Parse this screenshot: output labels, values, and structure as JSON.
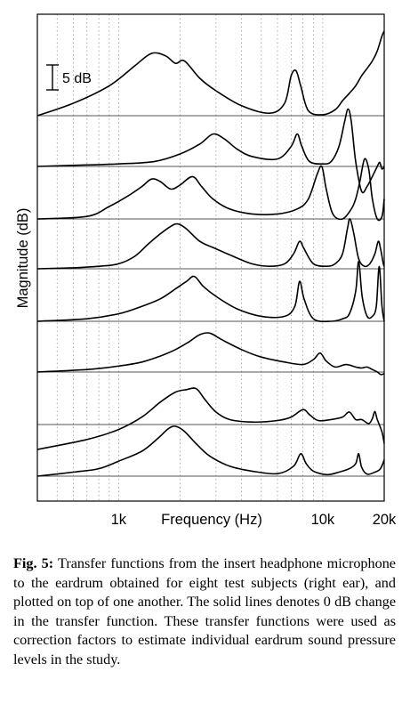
{
  "chart_data": {
    "type": "line",
    "xlabel": "Frequency (Hz)",
    "ylabel": "Magnitude (dB)",
    "x_scale": "log",
    "xlim": [
      400,
      20000
    ],
    "x_tick_labels": [
      "1k",
      "10k",
      "20k"
    ],
    "x_ticks": [
      1000,
      10000,
      20000
    ],
    "scale_bar_label": "5 dB",
    "scale_bar_db": 5,
    "grid": "dotted vertical",
    "series": [
      {
        "name": "",
        "points": [
          [
            400,
            0
          ],
          [
            600,
            2.5
          ],
          [
            900,
            6
          ],
          [
            1200,
            10
          ],
          [
            1450,
            12.5
          ],
          [
            1700,
            12
          ],
          [
            1900,
            10.5
          ],
          [
            2100,
            11
          ],
          [
            2500,
            7.5
          ],
          [
            3000,
            5
          ],
          [
            4000,
            2
          ],
          [
            5500,
            0.5
          ],
          [
            6500,
            2.5
          ],
          [
            7000,
            8
          ],
          [
            7400,
            9
          ],
          [
            7800,
            6
          ],
          [
            8500,
            1
          ],
          [
            10000,
            0.2
          ],
          [
            11500,
            1.2
          ],
          [
            12500,
            3
          ],
          [
            13500,
            4.5
          ],
          [
            14500,
            6
          ],
          [
            15500,
            8
          ],
          [
            16500,
            9.5
          ],
          [
            17500,
            11
          ],
          [
            18500,
            13
          ],
          [
            19500,
            16
          ],
          [
            20000,
            17
          ]
        ]
      },
      {
        "name": "",
        "points": [
          [
            400,
            0
          ],
          [
            700,
            0.3
          ],
          [
            1000,
            0.5
          ],
          [
            1500,
            1
          ],
          [
            2000,
            2.5
          ],
          [
            2500,
            4.5
          ],
          [
            2900,
            6.5
          ],
          [
            3300,
            5.5
          ],
          [
            3800,
            3.5
          ],
          [
            4500,
            2
          ],
          [
            6000,
            1.5
          ],
          [
            7000,
            4
          ],
          [
            7500,
            6.5
          ],
          [
            7900,
            4
          ],
          [
            8600,
            1
          ],
          [
            10000,
            0.5
          ],
          [
            11000,
            1
          ],
          [
            12000,
            4
          ],
          [
            12800,
            9
          ],
          [
            13300,
            11.5
          ],
          [
            13800,
            9
          ],
          [
            14500,
            1
          ],
          [
            15500,
            -5
          ],
          [
            16500,
            -4
          ],
          [
            17500,
            -2
          ],
          [
            18500,
            0
          ],
          [
            19000,
            0.8
          ],
          [
            19500,
            -0.5
          ],
          [
            20000,
            0
          ]
        ]
      },
      {
        "name": "",
        "points": [
          [
            400,
            0
          ],
          [
            700,
            0.5
          ],
          [
            900,
            2.5
          ],
          [
            1100,
            4.5
          ],
          [
            1300,
            6.5
          ],
          [
            1450,
            8
          ],
          [
            1600,
            7.5
          ],
          [
            1800,
            6
          ],
          [
            2000,
            6.8
          ],
          [
            2300,
            8.5
          ],
          [
            2550,
            6.5
          ],
          [
            2900,
            4
          ],
          [
            3500,
            2
          ],
          [
            4500,
            1
          ],
          [
            6000,
            1
          ],
          [
            7500,
            2
          ],
          [
            8500,
            4
          ],
          [
            9400,
            9
          ],
          [
            9900,
            10.5
          ],
          [
            10400,
            6
          ],
          [
            11200,
            1
          ],
          [
            12500,
            0
          ],
          [
            13800,
            2
          ],
          [
            14500,
            4
          ],
          [
            15200,
            7.5
          ],
          [
            16000,
            12
          ],
          [
            16800,
            10
          ],
          [
            17500,
            4
          ],
          [
            18500,
            0
          ],
          [
            19500,
            0.5
          ],
          [
            20000,
            4
          ]
        ]
      },
      {
        "name": "",
        "points": [
          [
            400,
            0
          ],
          [
            600,
            0.2
          ],
          [
            800,
            0.5
          ],
          [
            1000,
            1
          ],
          [
            1200,
            2.5
          ],
          [
            1400,
            5
          ],
          [
            1600,
            7
          ],
          [
            1800,
            8.5
          ],
          [
            1950,
            9
          ],
          [
            2150,
            8
          ],
          [
            2500,
            5.5
          ],
          [
            3000,
            4
          ],
          [
            3500,
            2.8
          ],
          [
            4500,
            1
          ],
          [
            5500,
            0.5
          ],
          [
            6500,
            1
          ],
          [
            7200,
            3
          ],
          [
            7700,
            5.5
          ],
          [
            8100,
            4
          ],
          [
            9000,
            1
          ],
          [
            10500,
            0.5
          ],
          [
            11500,
            1
          ],
          [
            12500,
            3
          ],
          [
            13200,
            8
          ],
          [
            13600,
            10
          ],
          [
            14200,
            7
          ],
          [
            15000,
            2
          ],
          [
            16000,
            0.5
          ],
          [
            17000,
            1
          ],
          [
            18000,
            3
          ],
          [
            18700,
            5.5
          ],
          [
            19200,
            4
          ],
          [
            19800,
            1
          ],
          [
            20000,
            0.5
          ]
        ]
      },
      {
        "name": "",
        "points": [
          [
            400,
            0
          ],
          [
            700,
            0.5
          ],
          [
            1000,
            1.5
          ],
          [
            1300,
            3
          ],
          [
            1600,
            4.5
          ],
          [
            1900,
            6.5
          ],
          [
            2150,
            8
          ],
          [
            2350,
            9
          ],
          [
            2600,
            7
          ],
          [
            3000,
            5
          ],
          [
            3800,
            2.5
          ],
          [
            5000,
            1
          ],
          [
            6500,
            1
          ],
          [
            7300,
            3
          ],
          [
            7700,
            8
          ],
          [
            8100,
            4.5
          ],
          [
            9000,
            0.5
          ],
          [
            11000,
            0
          ],
          [
            12500,
            0.5
          ],
          [
            13500,
            1.5
          ],
          [
            14500,
            6
          ],
          [
            15000,
            12
          ],
          [
            15600,
            5
          ],
          [
            16500,
            1
          ],
          [
            17500,
            1
          ],
          [
            18300,
            3
          ],
          [
            18900,
            11
          ],
          [
            19500,
            3
          ],
          [
            20000,
            0
          ]
        ]
      },
      {
        "name": "",
        "points": [
          [
            400,
            0
          ],
          [
            700,
            0.5
          ],
          [
            1000,
            1.2
          ],
          [
            1300,
            2
          ],
          [
            1600,
            3.2
          ],
          [
            1900,
            4.5
          ],
          [
            2200,
            6
          ],
          [
            2500,
            7.5
          ],
          [
            2800,
            7.8
          ],
          [
            3200,
            6.5
          ],
          [
            4000,
            4.5
          ],
          [
            5000,
            3
          ],
          [
            6500,
            2
          ],
          [
            8000,
            1.5
          ],
          [
            9000,
            2.5
          ],
          [
            9700,
            3.8
          ],
          [
            10400,
            2.2
          ],
          [
            11500,
            1
          ],
          [
            13000,
            1.5
          ],
          [
            14500,
            1
          ],
          [
            15500,
            0.8
          ],
          [
            16500,
            1
          ],
          [
            17500,
            0.5
          ],
          [
            18500,
            0
          ],
          [
            19200,
            -0.5
          ],
          [
            19800,
            -0.4
          ],
          [
            20000,
            -0.4
          ]
        ]
      },
      {
        "name": "",
        "points": [
          [
            400,
            -5
          ],
          [
            700,
            -3
          ],
          [
            1000,
            -1
          ],
          [
            1300,
            1.5
          ],
          [
            1600,
            4.5
          ],
          [
            1900,
            6.5
          ],
          [
            2150,
            7
          ],
          [
            2400,
            7.2
          ],
          [
            2650,
            5
          ],
          [
            3000,
            2.5
          ],
          [
            3500,
            1
          ],
          [
            4500,
            0.5
          ],
          [
            6000,
            0.8
          ],
          [
            7000,
            1.5
          ],
          [
            8000,
            3
          ],
          [
            8600,
            2
          ],
          [
            9500,
            0.8
          ],
          [
            11000,
            1
          ],
          [
            12500,
            1.5
          ],
          [
            13500,
            2.5
          ],
          [
            14500,
            1
          ],
          [
            15500,
            1
          ],
          [
            16800,
            0.2
          ],
          [
            17500,
            1.2
          ],
          [
            18000,
            2.6
          ],
          [
            18500,
            1
          ],
          [
            19500,
            -1.5
          ],
          [
            20000,
            -3.8
          ]
        ]
      },
      {
        "name": "",
        "points": [
          [
            400,
            0
          ],
          [
            600,
            0.8
          ],
          [
            800,
            1.5
          ],
          [
            1000,
            3
          ],
          [
            1300,
            5
          ],
          [
            1550,
            7.5
          ],
          [
            1750,
            9.5
          ],
          [
            1900,
            10
          ],
          [
            2100,
            9
          ],
          [
            2400,
            6.5
          ],
          [
            2800,
            4
          ],
          [
            3500,
            2
          ],
          [
            4500,
            1
          ],
          [
            6000,
            0.5
          ],
          [
            7200,
            2
          ],
          [
            7800,
            4.5
          ],
          [
            8300,
            2.5
          ],
          [
            9000,
            1
          ],
          [
            10500,
            0.3
          ],
          [
            12000,
            0.8
          ],
          [
            13500,
            1.5
          ],
          [
            14500,
            2.5
          ],
          [
            15000,
            4.5
          ],
          [
            15500,
            1.8
          ],
          [
            16500,
            0.4
          ],
          [
            18000,
            0.8
          ],
          [
            19000,
            1.3
          ],
          [
            19600,
            2.3
          ],
          [
            20000,
            3.3
          ]
        ]
      }
    ]
  },
  "caption": {
    "label": "Fig. 5:",
    "text": "Transfer functions from the insert headphone microphone to the eardrum obtained for eight test subjects (right ear), and plotted on top of one another. The solid lines denotes 0 dB change in the transfer function. These transfer functions were used as correction factors to estimate individual eardrum sound pressure levels in the study."
  }
}
